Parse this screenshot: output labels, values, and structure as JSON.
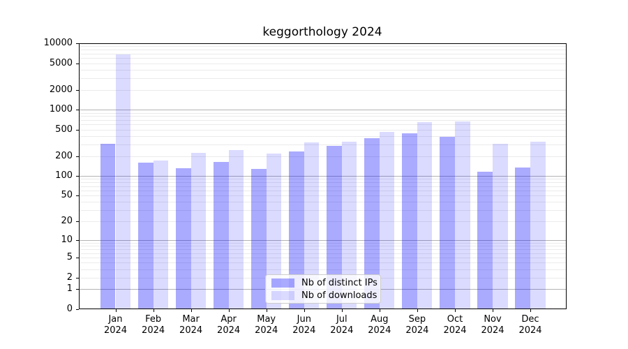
{
  "chart_data": {
    "type": "bar",
    "title": "keggorthology 2024",
    "categories": [
      "Jan",
      "Feb",
      "Mar",
      "Apr",
      "May",
      "Jun",
      "Jul",
      "Aug",
      "Sep",
      "Oct",
      "Nov",
      "Dec"
    ],
    "year": "2024",
    "series": [
      {
        "name": "Nb of distinct IPs",
        "color": "#0000FF55",
        "values": [
          310,
          160,
          131,
          164,
          128,
          233,
          288,
          372,
          440,
          390,
          116,
          134
        ]
      },
      {
        "name": "Nb of downloads",
        "color": "#0000FF24",
        "values": [
          6830,
          172,
          223,
          245,
          218,
          324,
          333,
          462,
          646,
          660,
          306,
          332
        ]
      }
    ],
    "xlabel": "",
    "ylabel": "",
    "yscale": "log1p",
    "ylim": [
      0,
      10000
    ],
    "yticks": [
      0,
      1,
      2,
      5,
      10,
      20,
      50,
      100,
      200,
      500,
      1000,
      2000,
      5000,
      10000
    ],
    "grid": {
      "major_values": [
        1,
        10,
        100,
        1000
      ],
      "major_color": "#b3b3b3",
      "minor_color": "#ebebeb"
    },
    "legend_position": "bottom-center"
  }
}
